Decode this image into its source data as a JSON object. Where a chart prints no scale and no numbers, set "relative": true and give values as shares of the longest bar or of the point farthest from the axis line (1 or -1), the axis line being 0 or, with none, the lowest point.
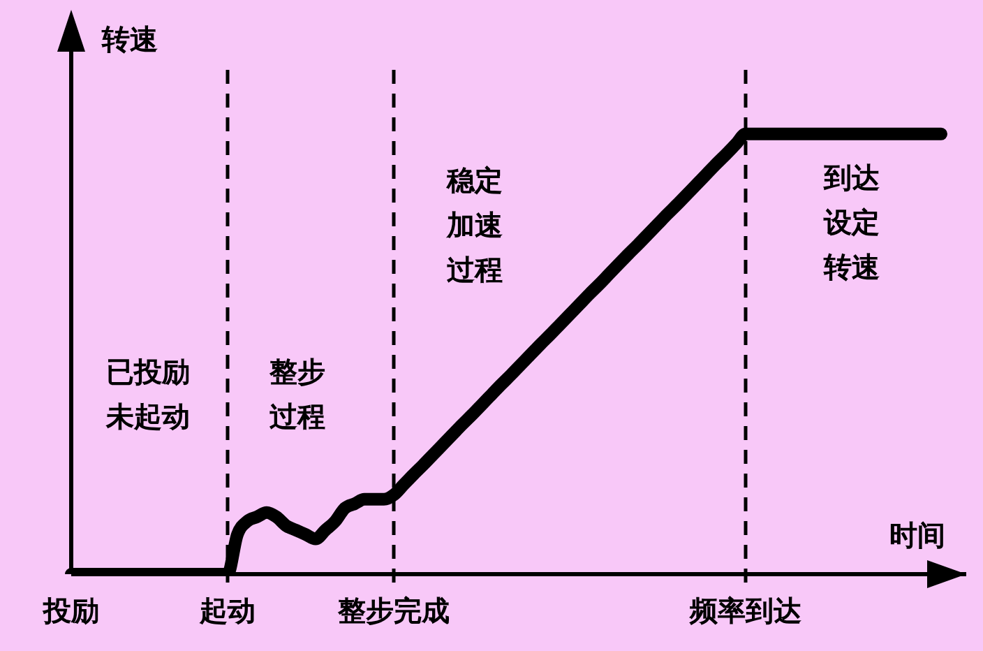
{
  "chart_data": {
    "type": "line",
    "xlabel": "时间",
    "ylabel": "转速",
    "relative": true,
    "marker": "none",
    "line_style": "solid",
    "categories": [
      "投励",
      null,
      null,
      null,
      null,
      null,
      null,
      null,
      null,
      null,
      null,
      null,
      null,
      null,
      null,
      null,
      "起动",
      null,
      null,
      null,
      null,
      null,
      null,
      null,
      null,
      null,
      null,
      null,
      null,
      null,
      null,
      null,
      null,
      "整步完成",
      null,
      null,
      null,
      null,
      null,
      null,
      null,
      null,
      null,
      null,
      null,
      null,
      null,
      null,
      null,
      null,
      null,
      null,
      null,
      null,
      null,
      null,
      null,
      null,
      null,
      null,
      null,
      null,
      null,
      null,
      null,
      null,
      null,
      null,
      null,
      "频率到达",
      null,
      null,
      null,
      null,
      null,
      null,
      null,
      null,
      null,
      null,
      null,
      null,
      null,
      null,
      null,
      null,
      null,
      null,
      null,
      null
    ],
    "series": [
      {
        "color": "#000000",
        "values": [
          0,
          0,
          0,
          0,
          0,
          0,
          0,
          0,
          0,
          0,
          0,
          0,
          0,
          0,
          0,
          0,
          0,
          0.09,
          0.12,
          0.13,
          0.14,
          0.13,
          0.11,
          0.1,
          0.09,
          0.08,
          0.1,
          0.12,
          0.15,
          0.16,
          0.17,
          0.17,
          0.17,
          0.18,
          0.203,
          0.226,
          0.248,
          0.271,
          0.294,
          0.317,
          0.34,
          0.362,
          0.385,
          0.408,
          0.431,
          0.453,
          0.476,
          0.499,
          0.522,
          0.544,
          0.567,
          0.59,
          0.613,
          0.636,
          0.658,
          0.681,
          0.704,
          0.727,
          0.749,
          0.772,
          0.795,
          0.818,
          0.84,
          0.863,
          0.886,
          0.909,
          0.932,
          0.954,
          0.977,
          1,
          1,
          1,
          1,
          1,
          1,
          1,
          1,
          1,
          1,
          1,
          1,
          1,
          1,
          1,
          1,
          1,
          1,
          1,
          1,
          1
        ]
      }
    ],
    "ref_lines": [
      {
        "axis": "x",
        "value": "起动",
        "color": "#000000",
        "line_style": "dashed"
      },
      {
        "axis": "x",
        "value": "整步完成",
        "color": "#000000",
        "line_style": "dashed"
      },
      {
        "axis": "x",
        "value": "频率到达",
        "color": "#000000",
        "line_style": "dashed"
      }
    ],
    "annotations": [
      "已投励未起动",
      "整步过程",
      "稳定加速过程",
      "到达设定转速"
    ]
  }
}
